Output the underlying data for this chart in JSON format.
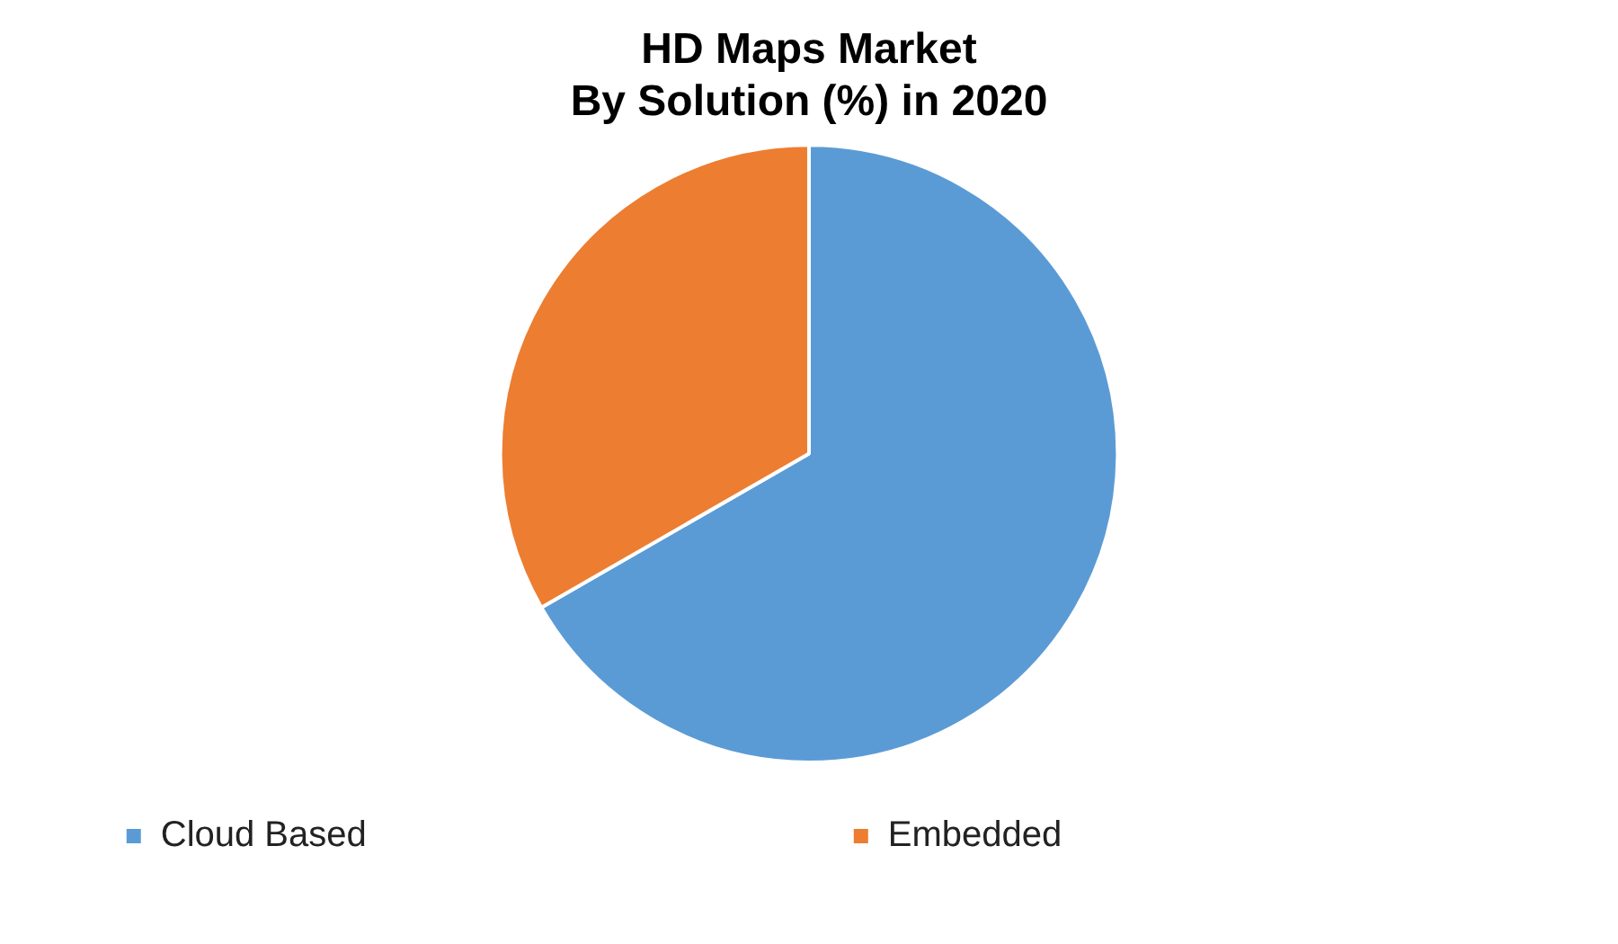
{
  "chart_data": {
    "type": "pie",
    "title": "HD Maps Market\nBy Solution (%) in 2020",
    "categories": [
      "Cloud Based",
      "Embedded"
    ],
    "values": [
      66.7,
      33.3
    ],
    "colors": [
      "#5b9bd5",
      "#ed7d31"
    ],
    "legend": "bottom"
  }
}
